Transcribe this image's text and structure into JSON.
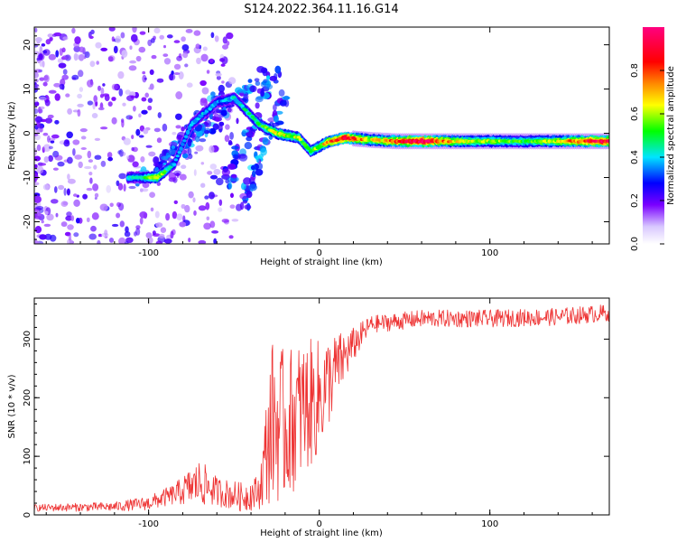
{
  "title": "S124.2022.364.11.16.G14",
  "chart_data": [
    {
      "type": "heatmap",
      "xlabel": "Height of straight line (km)",
      "ylabel": "Frequency (Hz)",
      "xlim": [
        -167,
        170
      ],
      "ylim": [
        -25,
        24
      ],
      "x_ticks": [
        -100,
        0,
        100
      ],
      "y_ticks": [
        -20,
        -10,
        0,
        10,
        20
      ],
      "colorbar": {
        "label": "Normalized spectral amplitude",
        "range": [
          0,
          1
        ],
        "ticks": [
          0.0,
          0.2,
          0.4,
          0.6,
          0.8
        ],
        "colors": [
          "#ffffff",
          "#7a00ff",
          "#0000ff",
          "#00e5ff",
          "#00ff00",
          "#ffff00",
          "#ff8800",
          "#ff0000",
          "#ff007f"
        ]
      },
      "ridge": [
        {
          "x": -105,
          "y": -10,
          "amp": 0.35
        },
        {
          "x": -95,
          "y": -10,
          "amp": 0.55
        },
        {
          "x": -85,
          "y": -7,
          "amp": 0.3
        },
        {
          "x": -75,
          "y": 2,
          "amp": 0.35
        },
        {
          "x": -60,
          "y": 7,
          "amp": 0.3
        },
        {
          "x": -50,
          "y": 8,
          "amp": 0.35
        },
        {
          "x": -35,
          "y": 2,
          "amp": 0.4
        },
        {
          "x": -25,
          "y": 0,
          "amp": 0.55
        },
        {
          "x": -12,
          "y": -1,
          "amp": 0.5
        },
        {
          "x": -5,
          "y": -4,
          "amp": 0.45
        },
        {
          "x": 5,
          "y": -2,
          "amp": 0.6
        },
        {
          "x": 15,
          "y": -1,
          "amp": 0.8
        },
        {
          "x": 30,
          "y": -1.5,
          "amp": 0.55
        },
        {
          "x": 45,
          "y": -1.8,
          "amp": 0.7
        },
        {
          "x": 60,
          "y": -1.8,
          "amp": 0.85
        },
        {
          "x": 80,
          "y": -1.8,
          "amp": 0.55
        },
        {
          "x": 100,
          "y": -1.8,
          "amp": 0.5
        },
        {
          "x": 120,
          "y": -1.8,
          "amp": 0.45
        },
        {
          "x": 140,
          "y": -1.8,
          "amp": 0.55
        },
        {
          "x": 160,
          "y": -1.8,
          "amp": 0.75
        }
      ]
    },
    {
      "type": "line",
      "xlabel": "Height of straight line (km)",
      "ylabel": "SNR (10 * v/v)",
      "xlim": [
        -167,
        170
      ],
      "ylim": [
        0,
        370
      ],
      "x_ticks": [
        -100,
        0,
        100
      ],
      "y_ticks": [
        0,
        100,
        200,
        300
      ],
      "series_color": "#ee3333",
      "profile": [
        {
          "x": -167,
          "y": 12,
          "noise": 6
        },
        {
          "x": -120,
          "y": 14,
          "noise": 8
        },
        {
          "x": -100,
          "y": 20,
          "noise": 12
        },
        {
          "x": -85,
          "y": 35,
          "noise": 18
        },
        {
          "x": -70,
          "y": 55,
          "noise": 40
        },
        {
          "x": -60,
          "y": 40,
          "noise": 25
        },
        {
          "x": -45,
          "y": 30,
          "noise": 25
        },
        {
          "x": -35,
          "y": 40,
          "noise": 30
        },
        {
          "x": -28,
          "y": 160,
          "noise": 140
        },
        {
          "x": -20,
          "y": 150,
          "noise": 130
        },
        {
          "x": -10,
          "y": 180,
          "noise": 120
        },
        {
          "x": 0,
          "y": 200,
          "noise": 100
        },
        {
          "x": 10,
          "y": 250,
          "noise": 60
        },
        {
          "x": 20,
          "y": 290,
          "noise": 30
        },
        {
          "x": 30,
          "y": 325,
          "noise": 15
        },
        {
          "x": 60,
          "y": 335,
          "noise": 15
        },
        {
          "x": 100,
          "y": 335,
          "noise": 15
        },
        {
          "x": 140,
          "y": 338,
          "noise": 15
        },
        {
          "x": 170,
          "y": 345,
          "noise": 15
        }
      ]
    }
  ]
}
